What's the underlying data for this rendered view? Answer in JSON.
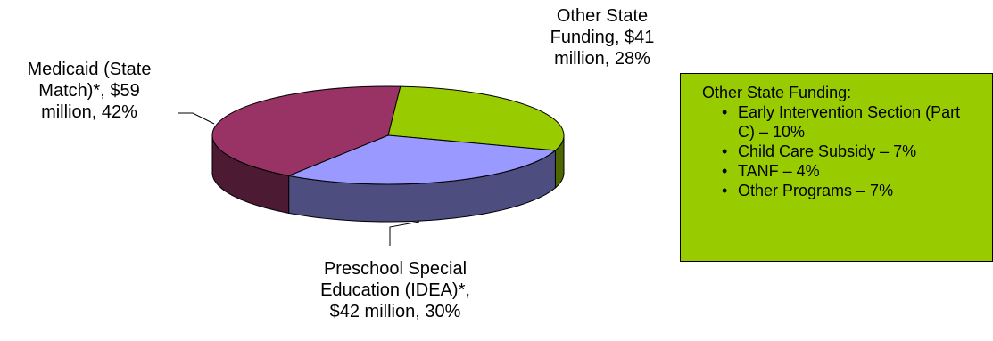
{
  "chart_data": {
    "type": "pie",
    "slices": [
      {
        "label_lines": [
          "Other State",
          "Funding, $41",
          "million, 28%"
        ],
        "value": 41,
        "percent": 28,
        "color": "#99cc00"
      },
      {
        "label_lines": [
          "Preschool Special",
          "Education (IDEA)*,",
          "$42 million, 30%"
        ],
        "value": 42,
        "percent": 30,
        "color": "#9999ff"
      },
      {
        "label_lines": [
          "Medicaid (State",
          "Match)*, $59",
          "million, 42%"
        ],
        "value": 59,
        "percent": 42,
        "color": "#993366"
      }
    ],
    "style": "3d-exploded-none"
  },
  "note_box": {
    "title": "Other State Funding:",
    "items": [
      "Early Intervention Section (Part C) – 10%",
      "Child Care Subsidy – 7%",
      "TANF – 4%",
      "Other Programs – 7%"
    ],
    "background": "#99cc00"
  }
}
